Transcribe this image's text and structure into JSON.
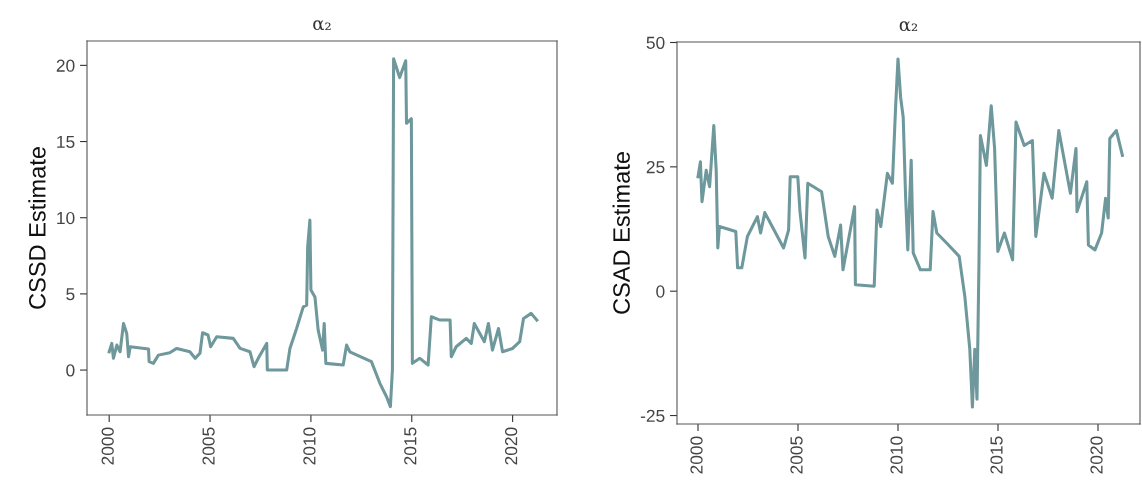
{
  "chart_data": [
    {
      "type": "line",
      "title": "α₂",
      "ylabel": "CSSD Estimate",
      "xlim": [
        1998.9,
        2022.2
      ],
      "xticks": [
        2000,
        2005,
        2010,
        2015,
        2020
      ],
      "ylim": [
        -2.95,
        21.6
      ],
      "yticks": [
        0,
        5,
        10,
        15,
        20
      ],
      "grid": false,
      "legend": false,
      "series": [
        {
          "color": "#6e989c",
          "x": [
            2000.0,
            2000.13,
            2000.21,
            2000.38,
            2000.54,
            2000.71,
            2000.87,
            2000.96,
            2001.04,
            2001.95,
            2001.98,
            2002.19,
            2002.44,
            2003.0,
            2003.35,
            2004.0,
            2004.26,
            2004.5,
            2004.63,
            2004.9,
            2005.03,
            2005.33,
            2006.15,
            2006.49,
            2006.98,
            2007.18,
            2007.39,
            2007.81,
            2007.84,
            2008.8,
            2008.96,
            2009.29,
            2009.62,
            2009.79,
            2009.84,
            2009.95,
            2010.0,
            2010.2,
            2010.36,
            2010.58,
            2010.66,
            2010.74,
            2011.6,
            2011.77,
            2011.93,
            2013.0,
            2013.42,
            2013.75,
            2013.94,
            2014.04,
            2014.1,
            2014.4,
            2014.7,
            2014.74,
            2014.98,
            2015.03,
            2015.4,
            2015.81,
            2015.97,
            2016.4,
            2016.9,
            2016.96,
            2017.2,
            2017.7,
            2017.95,
            2018.1,
            2018.6,
            2018.8,
            2019.0,
            2019.3,
            2019.5,
            2020.0,
            2020.35,
            2020.54,
            2020.92,
            2021.2
          ],
          "values": [
            1.2,
            1.75,
            0.77,
            1.64,
            1.2,
            3.06,
            2.4,
            0.87,
            1.53,
            1.38,
            0.55,
            0.44,
            0.98,
            1.14,
            1.42,
            1.2,
            0.77,
            1.1,
            2.45,
            2.3,
            1.53,
            2.19,
            2.08,
            1.42,
            1.2,
            0.22,
            0.77,
            1.75,
            0,
            0,
            1.42,
            2.73,
            4.15,
            4.26,
            8.1,
            9.84,
            5.25,
            4.8,
            2.62,
            1.31,
            3.06,
            0.44,
            0.33,
            1.64,
            1.2,
            0.55,
            -0.87,
            -1.75,
            -2.4,
            0,
            20.44,
            19.2,
            20.3,
            16.2,
            16.5,
            0.44,
            0.77,
            0.33,
            3.5,
            3.28,
            3.28,
            0.87,
            1.53,
            2.08,
            1.75,
            3.06,
            1.86,
            3.06,
            1.31,
            2.73,
            1.2,
            1.42,
            1.86,
            3.39,
            3.72,
            3.28
          ]
        }
      ]
    },
    {
      "type": "line",
      "title": "α₂",
      "ylabel": "CSAD Estimate",
      "xlim": [
        1998.95,
        2022.1
      ],
      "xticks": [
        2000,
        2005,
        2010,
        2015,
        2020
      ],
      "ylim": [
        -26.7,
        50.1
      ],
      "yticks": [
        {
          "value": -25,
          "label": "-25"
        },
        0,
        25,
        50
      ],
      "grid": false,
      "legend": false,
      "series": [
        {
          "color": "#6e989c",
          "x": [
            2000.0,
            2000.12,
            2000.2,
            2000.41,
            2000.58,
            2000.79,
            2000.91,
            2000.99,
            2001.07,
            2001.89,
            2001.98,
            2002.19,
            2002.47,
            2002.97,
            2003.13,
            2003.34,
            2003.71,
            2004.28,
            2004.53,
            2004.61,
            2004.99,
            2005.1,
            2005.35,
            2005.49,
            2006.18,
            2006.51,
            2006.84,
            2007.13,
            2007.25,
            2007.83,
            2007.87,
            2008.81,
            2008.95,
            2009.14,
            2009.47,
            2009.72,
            2009.88,
            2010.0,
            2010.13,
            2010.26,
            2010.38,
            2010.49,
            2010.66,
            2010.76,
            2011.12,
            2011.61,
            2011.75,
            2011.94,
            2012.43,
            2013.06,
            2013.34,
            2013.59,
            2013.72,
            2013.84,
            2013.95,
            2014.05,
            2014.12,
            2014.42,
            2014.66,
            2014.83,
            2014.99,
            2015.32,
            2015.73,
            2015.9,
            2016.31,
            2016.72,
            2016.89,
            2017.3,
            2017.71,
            2018.04,
            2018.62,
            2018.9,
            2018.95,
            2019.44,
            2019.52,
            2019.85,
            2020.18,
            2020.38,
            2020.51,
            2020.59,
            2020.92,
            2021.22
          ],
          "values": [
            23,
            26,
            18,
            24.3,
            21,
            33.3,
            24.3,
            8.7,
            13,
            12,
            4.7,
            4.7,
            11,
            15,
            11.7,
            15.8,
            13,
            8.7,
            12.3,
            23,
            23,
            16,
            6.7,
            21.7,
            20,
            11,
            7,
            13.3,
            4.3,
            17,
            1.3,
            1,
            16.3,
            13,
            23.7,
            21.7,
            37,
            46.7,
            39,
            35,
            19,
            8.3,
            26.3,
            7.7,
            4.3,
            4.3,
            16,
            11.7,
            9.7,
            7,
            -1,
            -11.7,
            -23.3,
            -11.7,
            -21.7,
            6.3,
            31.3,
            25.3,
            37.3,
            28.7,
            8,
            11.7,
            6.3,
            34,
            29.3,
            30.3,
            11,
            23.7,
            18.7,
            32.3,
            19.7,
            28.7,
            16,
            22,
            9.3,
            8.3,
            11.7,
            18.7,
            14.7,
            30.7,
            32.3,
            27.3
          ]
        }
      ]
    }
  ]
}
